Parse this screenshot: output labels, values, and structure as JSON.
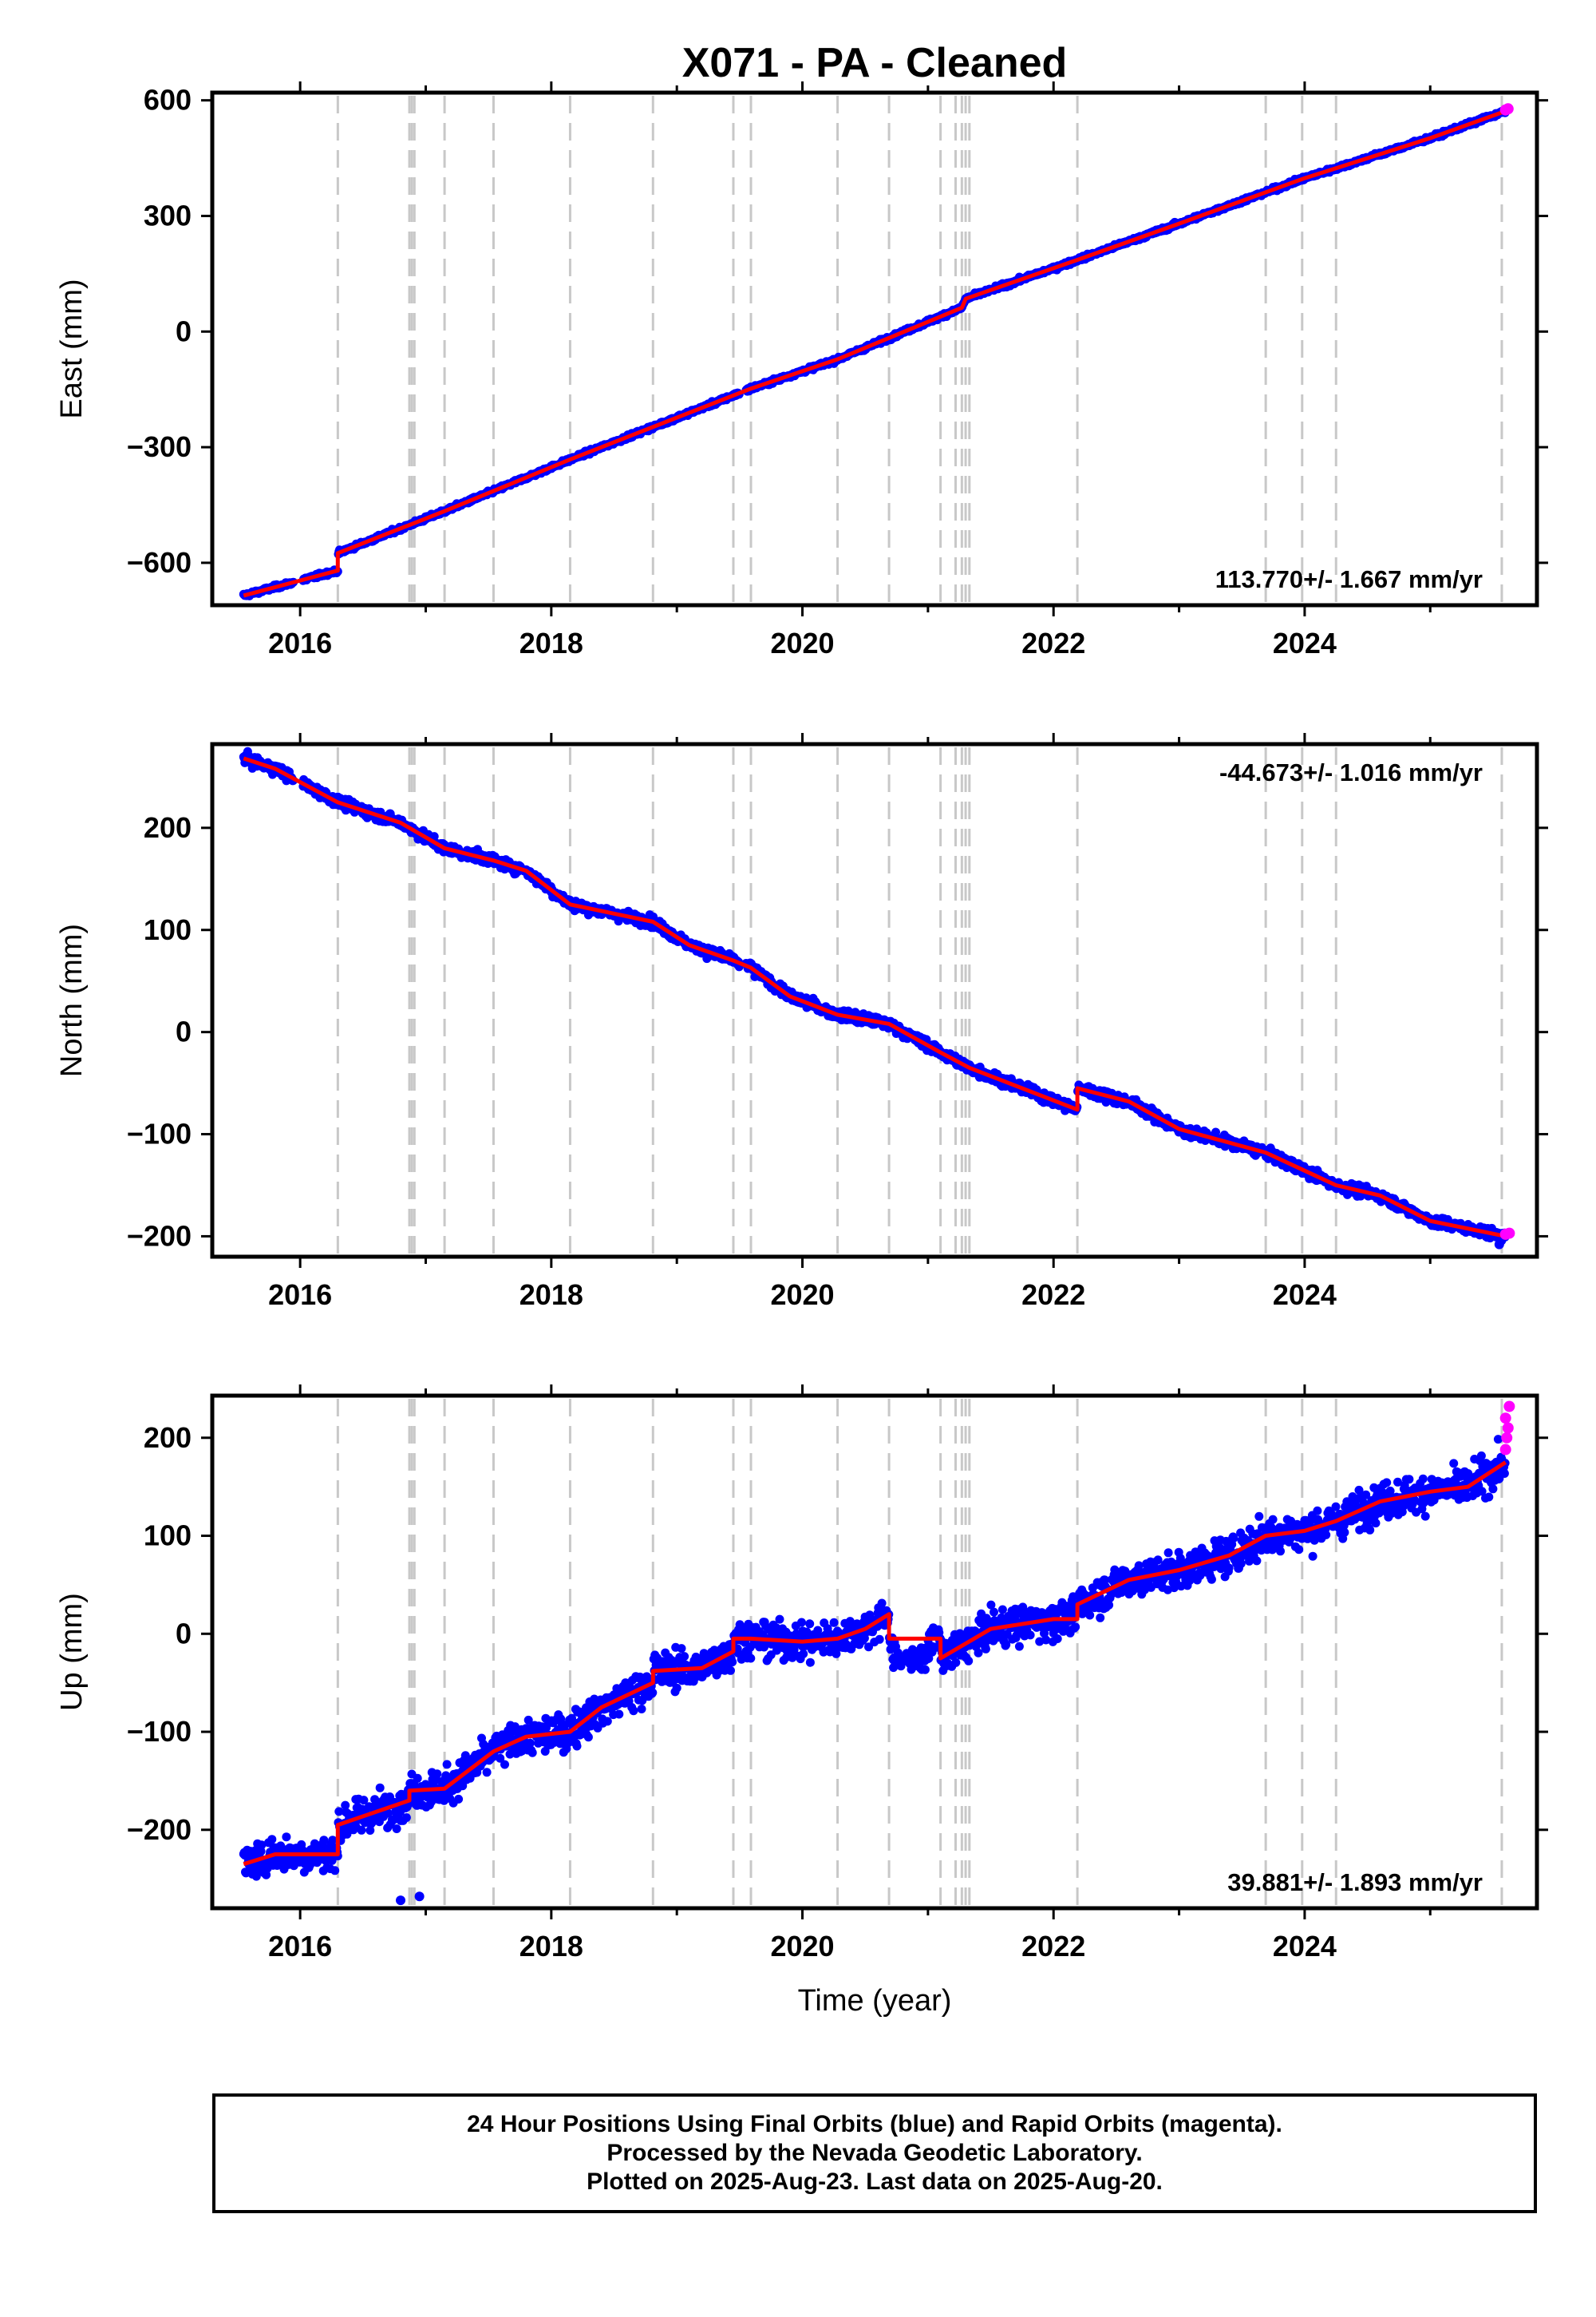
{
  "title": "X071  - PA - Cleaned",
  "xlabel": "Time (year)",
  "colors": {
    "final": "#0000ff",
    "rapid": "#ff00ff",
    "model": "#ff0000",
    "steps": "#c8c8c8"
  },
  "caption": {
    "line1": "24 Hour Positions Using Final Orbits (blue) and Rapid Orbits (magenta).",
    "line2": "Processed by the Nevada Geodetic Laboratory.",
    "line3": "Plotted on 2025-Aug-23. Last data on 2025-Aug-20."
  },
  "chart_data": [
    {
      "type": "scatter",
      "ylabel": "East (mm)",
      "rate_label": "113.770+/- 1.667 mm/yr",
      "xlim": [
        2015.3,
        2025.85
      ],
      "ylim": [
        -710,
        620
      ],
      "xticks": [
        2016,
        2018,
        2020,
        2022,
        2024
      ],
      "yticks": [
        -600,
        -300,
        0,
        300,
        600
      ],
      "steps": [
        2016.3,
        2016.87,
        2016.89,
        2016.91,
        2017.15,
        2017.54,
        2018.15,
        2018.81,
        2019.45,
        2019.59,
        2020.28,
        2020.69,
        2021.1,
        2021.22,
        2021.27,
        2021.3,
        2021.33,
        2022.19,
        2023.69,
        2023.98,
        2024.25,
        2025.57
      ],
      "model": [
        [
          2015.55,
          -685
        ],
        [
          2016.3,
          -620
        ],
        [
          2016.3,
          -575
        ],
        [
          2017.15,
          -466
        ],
        [
          2018.15,
          -332
        ],
        [
          2019.59,
          -148
        ],
        [
          2020.28,
          -72
        ],
        [
          2021.27,
          62
        ],
        [
          2021.3,
          85
        ],
        [
          2022.19,
          186
        ],
        [
          2023.0,
          280
        ],
        [
          2024.0,
          398
        ],
        [
          2025.0,
          502
        ],
        [
          2025.6,
          572
        ]
      ],
      "rapid": [
        [
          2025.6,
          575
        ],
        [
          2025.62,
          578
        ]
      ],
      "outliers": []
    },
    {
      "type": "scatter",
      "ylabel": "North (mm)",
      "rate_label": "-44.673+/- 1.016 mm/yr",
      "xlim": [
        2015.3,
        2025.85
      ],
      "ylim": [
        -220,
        282
      ],
      "xticks": [
        2016,
        2018,
        2020,
        2022,
        2024
      ],
      "yticks": [
        -200,
        -100,
        0,
        100,
        200
      ],
      "steps": [
        2016.3,
        2016.87,
        2016.89,
        2016.91,
        2017.15,
        2017.54,
        2018.15,
        2018.81,
        2019.45,
        2019.59,
        2020.28,
        2020.69,
        2021.1,
        2021.22,
        2021.27,
        2021.3,
        2021.33,
        2022.19,
        2023.69,
        2023.98,
        2024.25,
        2025.57
      ],
      "model": [
        [
          2015.55,
          268
        ],
        [
          2015.8,
          258
        ],
        [
          2016.3,
          225
        ],
        [
          2016.8,
          205
        ],
        [
          2017.15,
          180
        ],
        [
          2017.54,
          168
        ],
        [
          2017.8,
          158
        ],
        [
          2018.15,
          125
        ],
        [
          2018.81,
          108
        ],
        [
          2019.1,
          85
        ],
        [
          2019.45,
          70
        ],
        [
          2019.59,
          63
        ],
        [
          2019.9,
          35
        ],
        [
          2020.28,
          17
        ],
        [
          2020.69,
          8
        ],
        [
          2021.1,
          -20
        ],
        [
          2021.33,
          -35
        ],
        [
          2022.19,
          -76
        ],
        [
          2022.19,
          -55
        ],
        [
          2022.6,
          -68
        ],
        [
          2023.0,
          -95
        ],
        [
          2023.69,
          -118
        ],
        [
          2024.25,
          -150
        ],
        [
          2024.6,
          -160
        ],
        [
          2025.0,
          -185
        ],
        [
          2025.6,
          -200
        ]
      ],
      "rapid": [
        [
          2025.6,
          -198
        ],
        [
          2025.63,
          -197
        ]
      ],
      "outliers": [
        [
          2025.55,
          -208
        ]
      ]
    },
    {
      "type": "scatter",
      "ylabel": "Up (mm)",
      "rate_label": "39.881+/- 1.893 mm/yr",
      "xlim": [
        2015.3,
        2025.85
      ],
      "ylim": [
        -280,
        243
      ],
      "xticks": [
        2016,
        2018,
        2020,
        2022,
        2024
      ],
      "yticks": [
        -200,
        -100,
        0,
        100,
        200
      ],
      "steps": [
        2016.3,
        2016.87,
        2016.89,
        2016.91,
        2017.15,
        2017.54,
        2018.15,
        2018.81,
        2019.45,
        2019.59,
        2020.28,
        2020.69,
        2021.1,
        2021.22,
        2021.27,
        2021.3,
        2021.33,
        2022.19,
        2023.69,
        2023.98,
        2024.25,
        2025.57
      ],
      "model": [
        [
          2015.55,
          -235
        ],
        [
          2015.8,
          -225
        ],
        [
          2016.3,
          -225
        ],
        [
          2016.3,
          -195
        ],
        [
          2016.87,
          -170
        ],
        [
          2016.87,
          -160
        ],
        [
          2017.15,
          -158
        ],
        [
          2017.54,
          -120
        ],
        [
          2017.8,
          -105
        ],
        [
          2018.15,
          -100
        ],
        [
          2018.4,
          -75
        ],
        [
          2018.81,
          -50
        ],
        [
          2018.81,
          -38
        ],
        [
          2019.2,
          -35
        ],
        [
          2019.45,
          -18
        ],
        [
          2019.45,
          -5
        ],
        [
          2019.59,
          -5
        ],
        [
          2019.59,
          -5
        ],
        [
          2020.0,
          -8
        ],
        [
          2020.28,
          -5
        ],
        [
          2020.5,
          5
        ],
        [
          2020.69,
          20
        ],
        [
          2020.69,
          -5
        ],
        [
          2021.1,
          -5
        ],
        [
          2021.1,
          -25
        ],
        [
          2021.5,
          5
        ],
        [
          2022.0,
          15
        ],
        [
          2022.19,
          15
        ],
        [
          2022.19,
          30
        ],
        [
          2022.6,
          55
        ],
        [
          2023.0,
          65
        ],
        [
          2023.4,
          80
        ],
        [
          2023.69,
          100
        ],
        [
          2024.0,
          105
        ],
        [
          2024.25,
          115
        ],
        [
          2024.6,
          135
        ],
        [
          2025.0,
          145
        ],
        [
          2025.3,
          150
        ],
        [
          2025.6,
          175
        ]
      ],
      "rapid": [
        [
          2025.6,
          188
        ],
        [
          2025.61,
          200
        ],
        [
          2025.62,
          210
        ],
        [
          2025.6,
          220
        ],
        [
          2025.63,
          232
        ]
      ],
      "outliers": [
        [
          2016.8,
          -272
        ],
        [
          2016.95,
          -268
        ]
      ]
    }
  ]
}
